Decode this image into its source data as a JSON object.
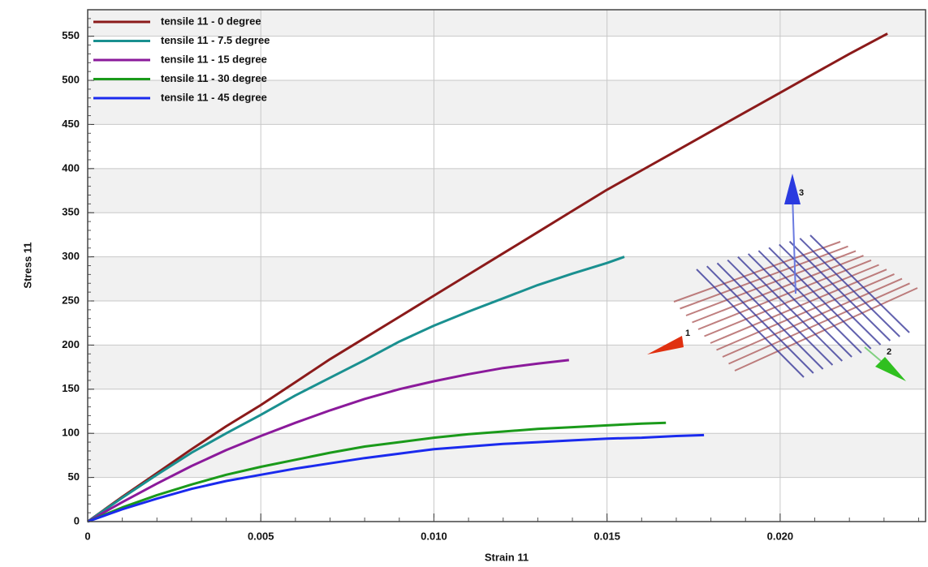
{
  "chart_data": {
    "type": "line",
    "x_label": "Strain 11",
    "y_label": "Stress 11",
    "xlim": [
      0,
      0.0242
    ],
    "ylim": [
      0,
      580
    ],
    "xticks": [
      0,
      0.005,
      {
        "value": 0.01,
        "label": "0.010"
      },
      0.015,
      {
        "value": 0.02,
        "label": "0.020"
      }
    ],
    "yticks": [
      0,
      50,
      100,
      150,
      200,
      250,
      300,
      350,
      400,
      450,
      500,
      550
    ],
    "grid": true,
    "legend": "upper left",
    "inset_labels": [
      "1",
      "2",
      "3"
    ],
    "series": [
      {
        "name": "tensile 11 - 0 degree",
        "color": "#8b1a1a",
        "x": [
          0,
          0.001,
          0.002,
          0.003,
          0.004,
          0.005,
          0.006,
          0.007,
          0.008,
          0.009,
          0.01,
          0.011,
          0.012,
          0.013,
          0.014,
          0.015,
          0.016,
          0.017,
          0.018,
          0.019,
          0.02,
          0.021,
          0.022,
          0.0231
        ],
        "values": [
          0,
          28,
          55,
          82,
          108,
          132,
          158,
          184,
          208,
          232,
          256,
          280,
          304,
          328,
          352,
          376,
          398,
          420,
          442,
          464,
          486,
          508,
          530,
          553
        ]
      },
      {
        "name": "tensile 11 - 7.5 degree",
        "color": "#1a9090",
        "x": [
          0,
          0.001,
          0.002,
          0.003,
          0.004,
          0.005,
          0.006,
          0.007,
          0.008,
          0.009,
          0.01,
          0.011,
          0.012,
          0.013,
          0.014,
          0.015,
          0.0155
        ],
        "values": [
          0,
          27,
          53,
          78,
          100,
          121,
          143,
          163,
          183,
          204,
          222,
          238,
          253,
          268,
          281,
          293,
          300
        ]
      },
      {
        "name": "tensile 11 - 15 degree",
        "color": "#8b1a9b",
        "x": [
          0,
          0.001,
          0.002,
          0.003,
          0.004,
          0.005,
          0.006,
          0.007,
          0.008,
          0.009,
          0.01,
          0.011,
          0.012,
          0.013,
          0.0139
        ],
        "values": [
          0,
          22,
          43,
          63,
          81,
          97,
          112,
          126,
          139,
          150,
          159,
          167,
          174,
          179,
          183
        ]
      },
      {
        "name": "tensile 11 - 30 degree",
        "color": "#1a9a1a",
        "x": [
          0,
          0.001,
          0.002,
          0.003,
          0.004,
          0.005,
          0.006,
          0.007,
          0.008,
          0.009,
          0.01,
          0.011,
          0.012,
          0.013,
          0.014,
          0.015,
          0.016,
          0.0167
        ],
        "values": [
          0,
          16,
          30,
          42,
          53,
          62,
          70,
          78,
          85,
          90,
          95,
          99,
          102,
          105,
          107,
          109,
          111,
          112
        ]
      },
      {
        "name": "tensile 11 - 45 degree",
        "color": "#1a2aee",
        "x": [
          0,
          0.001,
          0.002,
          0.003,
          0.004,
          0.005,
          0.006,
          0.007,
          0.008,
          0.009,
          0.01,
          0.011,
          0.012,
          0.013,
          0.014,
          0.015,
          0.016,
          0.017,
          0.0178
        ],
        "values": [
          0,
          14,
          26,
          37,
          46,
          53,
          60,
          66,
          72,
          77,
          82,
          85,
          88,
          90,
          92,
          94,
          95,
          97,
          98
        ]
      }
    ]
  }
}
